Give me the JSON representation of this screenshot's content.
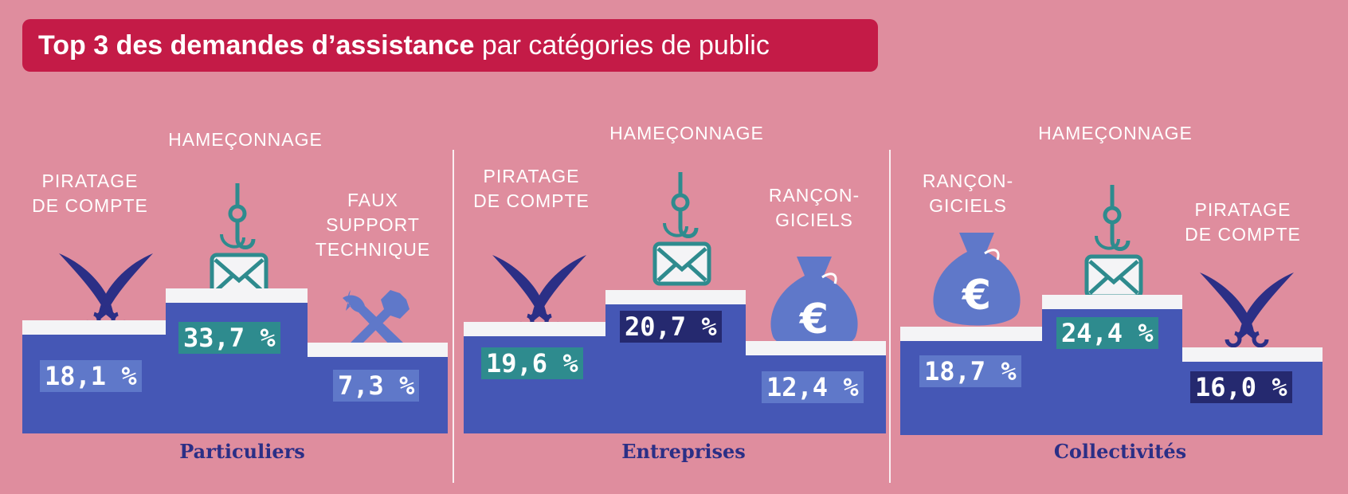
{
  "title": {
    "bold": "Top 3 des demandes d’assistance",
    "regular": "par catégories de public"
  },
  "colors": {
    "background": "#df8d9e",
    "title_bg": "#c41b47",
    "podium": "#4557b5",
    "label_teal": "#2e8b8e",
    "label_navy": "#25296f",
    "label_blue": "#5f78c9"
  },
  "chart_data": [
    {
      "type": "bar",
      "name": "Particuliers",
      "categories": [
        "PIRATAGE DE COMPTE",
        "HAMEÇONNAGE",
        "FAUX SUPPORT TECHNIQUE"
      ],
      "values": [
        18.1,
        33.7,
        7.3
      ],
      "value_labels": [
        "18,1 %",
        "33,7 %",
        "7,3 %"
      ],
      "icons": [
        "crossed-swords-icon",
        "phishing-hook-icon",
        "tools-icon"
      ],
      "ranks": [
        2,
        1,
        3
      ]
    },
    {
      "type": "bar",
      "name": "Entreprises",
      "categories": [
        "PIRATAGE DE COMPTE",
        "HAMEÇONNAGE",
        "RANÇON-GICIELS"
      ],
      "values": [
        19.6,
        20.7,
        12.4
      ],
      "value_labels": [
        "19,6 %",
        "20,7 %",
        "12,4 %"
      ],
      "icons": [
        "crossed-swords-icon",
        "phishing-hook-icon",
        "money-bag-icon"
      ],
      "ranks": [
        2,
        1,
        3
      ]
    },
    {
      "type": "bar",
      "name": "Collectivités",
      "categories": [
        "RANÇON-GICIELS",
        "HAMEÇONNAGE",
        "PIRATAGE DE COMPTE"
      ],
      "values": [
        18.7,
        24.4,
        16.0
      ],
      "value_labels": [
        "18,7 %",
        "24,4 %",
        "16,0 %"
      ],
      "icons": [
        "money-bag-icon",
        "phishing-hook-icon",
        "crossed-swords-icon"
      ],
      "ranks": [
        2,
        1,
        3
      ]
    }
  ],
  "panels": [
    {
      "name": "Particuliers",
      "labels": [
        "PIRATAGE\nDE COMPTE",
        "HAMEÇONNAGE",
        "FAUX\nSUPPORT\nTECHNIQUE"
      ],
      "pct": [
        "18,1 %",
        "33,7 %",
        "7,3 %"
      ]
    },
    {
      "name": "Entreprises",
      "labels": [
        "PIRATAGE\nDE COMPTE",
        "HAMEÇONNAGE",
        "RANÇON-\nGICIELS"
      ],
      "pct": [
        "19,6 %",
        "20,7 %",
        "12,4 %"
      ]
    },
    {
      "name": "Collectivités",
      "labels": [
        "RANÇON-\nGICIELS",
        "HAMEÇONNAGE",
        "PIRATAGE\nDE COMPTE"
      ],
      "pct": [
        "18,7 %",
        "24,4 %",
        "16,0 %"
      ]
    }
  ]
}
